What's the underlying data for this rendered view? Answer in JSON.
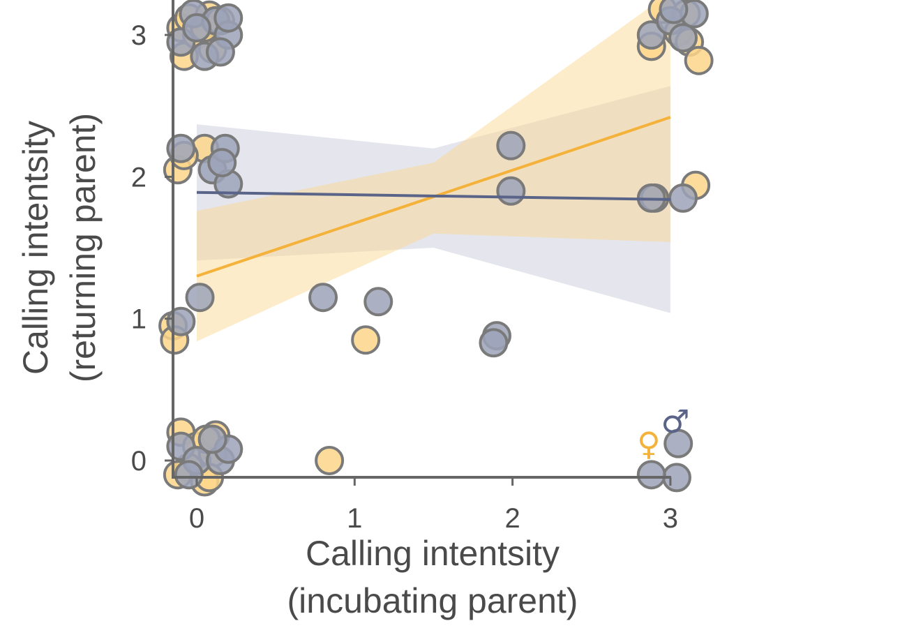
{
  "chart_data": {
    "type": "scatter",
    "title": "",
    "xlabel": [
      "Calling intentsity",
      "(incubating parent)"
    ],
    "ylabel": [
      "Calling intentsity",
      "(returning parent)"
    ],
    "xlim": [
      -0.18,
      3.2
    ],
    "ylim": [
      -0.18,
      3.2
    ],
    "x_ticks": [
      "0",
      "1",
      "2",
      "3"
    ],
    "y_ticks": [
      "0",
      "1",
      "2",
      "3"
    ],
    "x_tick_values": [
      0,
      1,
      2,
      3
    ],
    "y_tick_values": [
      0,
      1,
      2,
      3
    ],
    "grid": false,
    "legend": {
      "placement": "bottom-right",
      "entries": [
        {
          "symbol": "♀",
          "color": "#f5b23a"
        },
        {
          "symbol": "♂",
          "color": "#5a6488"
        }
      ]
    },
    "series": [
      {
        "sex": "female",
        "color": "#f5b23a",
        "point_fill": "#fdd68a",
        "band_fill": "#fbd48a",
        "trend": {
          "x": [
            0,
            3
          ],
          "y": [
            1.3,
            2.42
          ]
        },
        "band": {
          "x": [
            0,
            1.5,
            3
          ],
          "upper": [
            1.76,
            2.1,
            3.3
          ],
          "lower": [
            0.84,
            1.6,
            1.54
          ]
        },
        "points": [
          {
            "x": -0.1,
            "y": 3.05
          },
          {
            "x": -0.05,
            "y": 3.12
          },
          {
            "x": -0.08,
            "y": 2.85
          },
          {
            "x": 0.0,
            "y": 3.0
          },
          {
            "x": 0.08,
            "y": 3.14
          },
          {
            "x": 0.1,
            "y": 2.9
          },
          {
            "x": 0.05,
            "y": 3.05
          },
          {
            "x": 0.15,
            "y": 3.1
          },
          {
            "x": -0.12,
            "y": 2.05
          },
          {
            "x": 0.05,
            "y": 2.2
          },
          {
            "x": -0.08,
            "y": 2.15
          },
          {
            "x": -0.15,
            "y": 0.95
          },
          {
            "x": -0.14,
            "y": 0.85
          },
          {
            "x": 1.07,
            "y": 0.85
          },
          {
            "x": 0.84,
            "y": 0.0
          },
          {
            "x": -0.1,
            "y": 0.2
          },
          {
            "x": 0.0,
            "y": 0.1
          },
          {
            "x": 0.1,
            "y": 0.05
          },
          {
            "x": -0.05,
            "y": -0.05
          },
          {
            "x": 0.05,
            "y": -0.15
          },
          {
            "x": 0.12,
            "y": 0.18
          },
          {
            "x": -0.12,
            "y": -0.1
          },
          {
            "x": 0.06,
            "y": 0.15
          },
          {
            "x": 0.08,
            "y": -0.12
          },
          {
            "x": 2.88,
            "y": 2.92
          },
          {
            "x": 2.95,
            "y": 3.18
          },
          {
            "x": 3.05,
            "y": 3.02
          },
          {
            "x": 3.1,
            "y": 3.15
          },
          {
            "x": 3.12,
            "y": 2.95
          },
          {
            "x": 3.18,
            "y": 2.82
          },
          {
            "x": 2.9,
            "y": 1.85
          },
          {
            "x": 3.16,
            "y": 1.94
          }
        ]
      },
      {
        "sex": "male",
        "color": "#5a6488",
        "point_fill": "#9ca3b8",
        "band_fill": "#c5c8d6",
        "trend": {
          "x": [
            0,
            3
          ],
          "y": [
            1.89,
            1.84
          ]
        },
        "band": {
          "x": [
            0,
            1.5,
            3
          ],
          "upper": [
            2.37,
            2.2,
            2.64
          ],
          "lower": [
            1.41,
            1.5,
            1.04
          ]
        },
        "points": [
          {
            "x": -0.02,
            "y": 3.15
          },
          {
            "x": 0.12,
            "y": 3.1
          },
          {
            "x": 0.05,
            "y": 2.85
          },
          {
            "x": 0.2,
            "y": 3.0
          },
          {
            "x": -0.1,
            "y": 2.95
          },
          {
            "x": 0.2,
            "y": 3.12
          },
          {
            "x": 0.15,
            "y": 2.88
          },
          {
            "x": 0.0,
            "y": 3.05
          },
          {
            "x": -0.1,
            "y": 2.2
          },
          {
            "x": 0.1,
            "y": 2.05
          },
          {
            "x": 0.18,
            "y": 2.2
          },
          {
            "x": 0.2,
            "y": 1.95
          },
          {
            "x": 0.16,
            "y": 2.1
          },
          {
            "x": 0.02,
            "y": 1.15
          },
          {
            "x": -0.1,
            "y": 0.98
          },
          {
            "x": 0.8,
            "y": 1.15
          },
          {
            "x": 1.15,
            "y": 1.12
          },
          {
            "x": 1.9,
            "y": 0.88
          },
          {
            "x": 1.88,
            "y": 0.83
          },
          {
            "x": 1.99,
            "y": 2.22
          },
          {
            "x": 1.99,
            "y": 1.9
          },
          {
            "x": -0.1,
            "y": 0.1
          },
          {
            "x": 0.0,
            "y": 0.0
          },
          {
            "x": 0.15,
            "y": 0.0
          },
          {
            "x": 0.2,
            "y": 0.08
          },
          {
            "x": -0.05,
            "y": -0.1
          },
          {
            "x": 0.1,
            "y": 0.15
          },
          {
            "x": 2.88,
            "y": 3.0
          },
          {
            "x": 3.0,
            "y": 3.1
          },
          {
            "x": 3.08,
            "y": 2.98
          },
          {
            "x": 3.15,
            "y": 3.15
          },
          {
            "x": 3.02,
            "y": 3.18
          },
          {
            "x": 2.88,
            "y": 1.85
          },
          {
            "x": 3.08,
            "y": 1.85
          },
          {
            "x": 3.05,
            "y": 0.12
          },
          {
            "x": 3.04,
            "y": -0.12
          },
          {
            "x": 2.88,
            "y": -0.1
          }
        ]
      }
    ]
  }
}
